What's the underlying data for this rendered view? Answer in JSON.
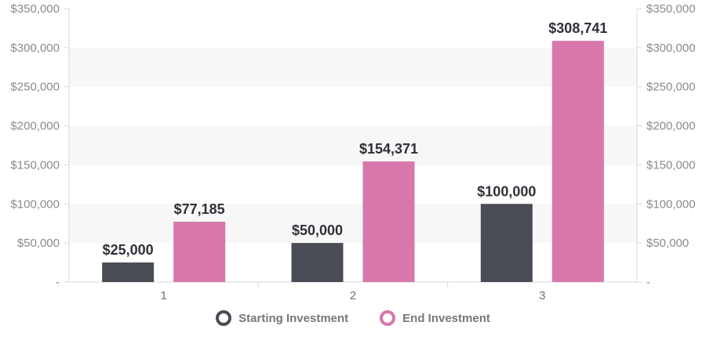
{
  "colors": {
    "series_0": "#4a4c55",
    "series_1": "#d777ac",
    "band": "#f7f7f7",
    "axis": "#d9d9d9",
    "tick_text": "#8a8a8a",
    "label_text": "#2f3138"
  },
  "chart_data": {
    "type": "bar",
    "categories": [
      "1",
      "2",
      "3"
    ],
    "series": [
      {
        "name": "Starting Investment",
        "values": [
          25000,
          50000,
          100000
        ],
        "labels": [
          "$25,000",
          "$50,000",
          "$100,000"
        ]
      },
      {
        "name": "End Investment",
        "values": [
          77185,
          154371,
          308741
        ],
        "labels": [
          "$77,185",
          "$154,371",
          "$308,741"
        ]
      }
    ],
    "ylim": [
      0,
      350000
    ],
    "yticks": [
      0,
      50000,
      100000,
      150000,
      200000,
      250000,
      300000,
      350000
    ],
    "ytick_labels": [
      "-",
      "$50,000",
      "$100,000",
      "$150,000",
      "$200,000",
      "$250,000",
      "$300,000",
      "$350,000"
    ],
    "secondary_y_axis": true,
    "grid": "alternating horizontal bands",
    "legend_position": "bottom-center",
    "title": "",
    "xlabel": "",
    "ylabel": ""
  }
}
